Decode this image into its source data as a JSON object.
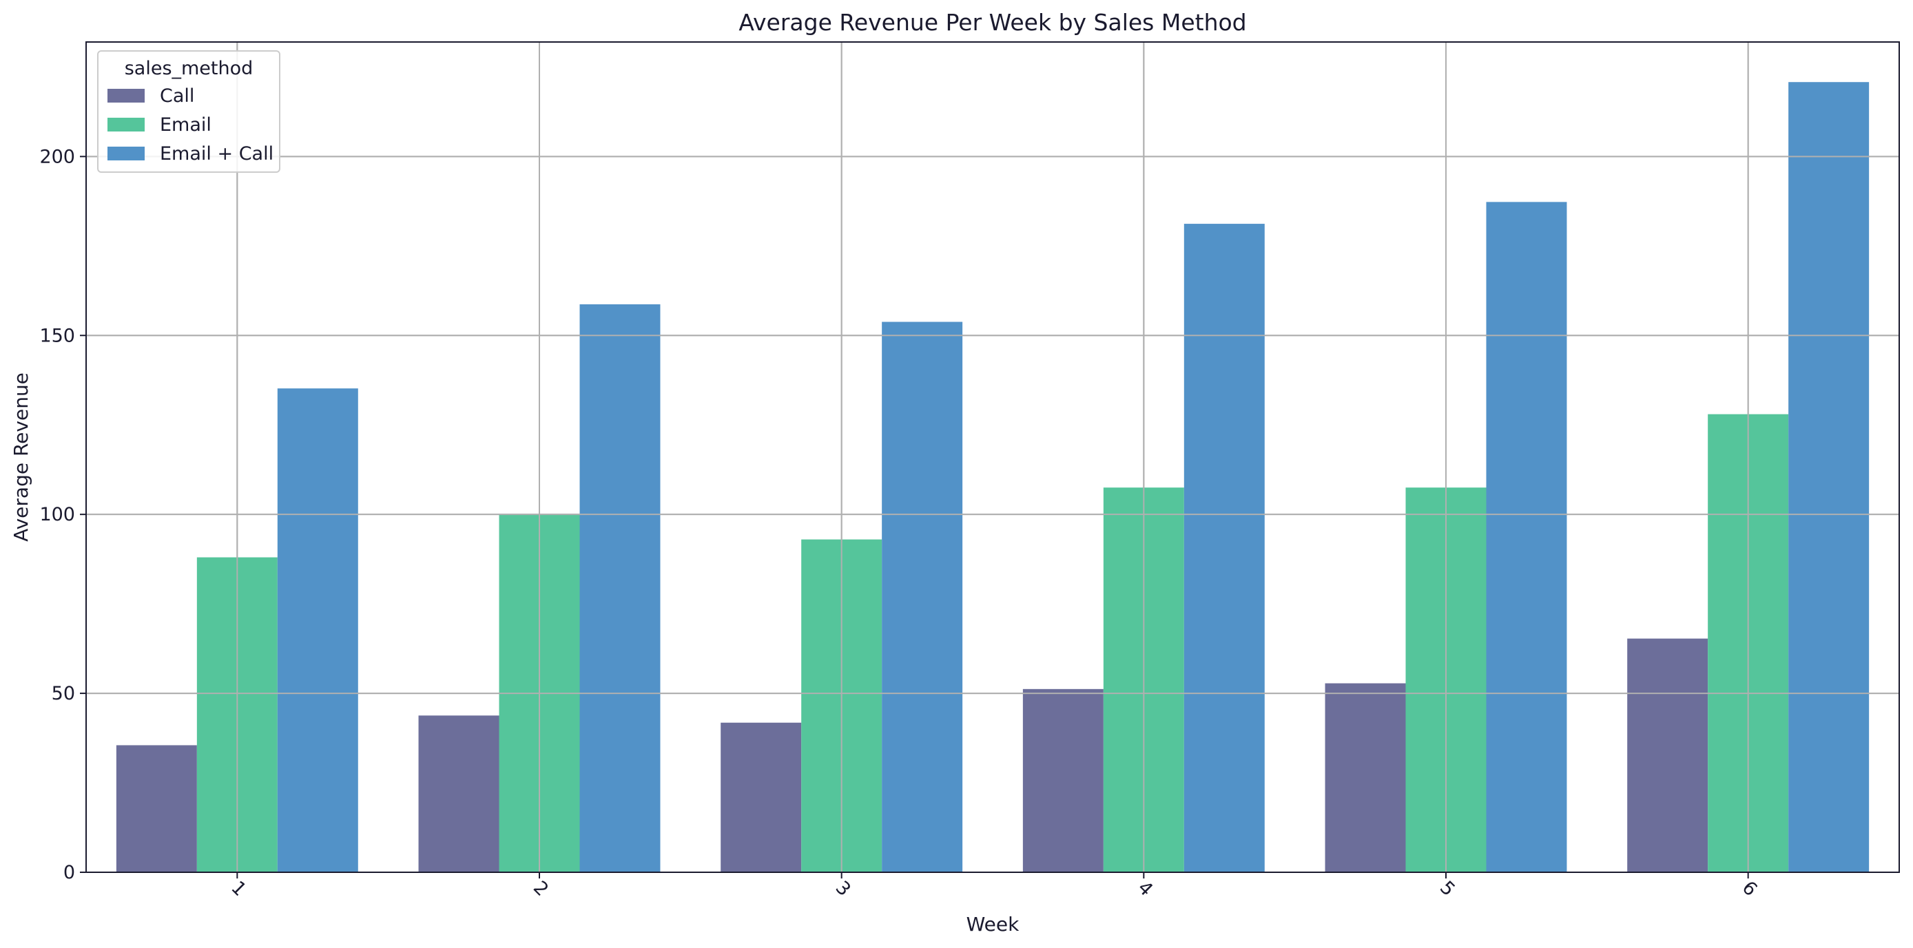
{
  "chart_data": {
    "type": "bar",
    "title": "Average Revenue Per Week by Sales Method",
    "xlabel": "Week",
    "ylabel": "Average Revenue",
    "categories": [
      "1",
      "2",
      "3",
      "4",
      "5",
      "6"
    ],
    "yticks": [
      "0",
      "50",
      "100",
      "150",
      "200"
    ],
    "ylim": [
      0,
      232
    ],
    "grid": true,
    "legend": {
      "title": "sales_method",
      "placement": "top-left"
    },
    "series": [
      {
        "name": "Call",
        "color": "#6c6e9a",
        "values": [
          35.5,
          43.8,
          41.8,
          51.2,
          52.8,
          65.3
        ]
      },
      {
        "name": "Email",
        "color": "#55c59b",
        "values": [
          88,
          100,
          93,
          107.5,
          107.5,
          128
        ]
      },
      {
        "name": "Email + Call",
        "color": "#5292c8",
        "values": [
          135.2,
          158.7,
          153.8,
          181.2,
          187.3,
          220.8
        ]
      }
    ]
  }
}
